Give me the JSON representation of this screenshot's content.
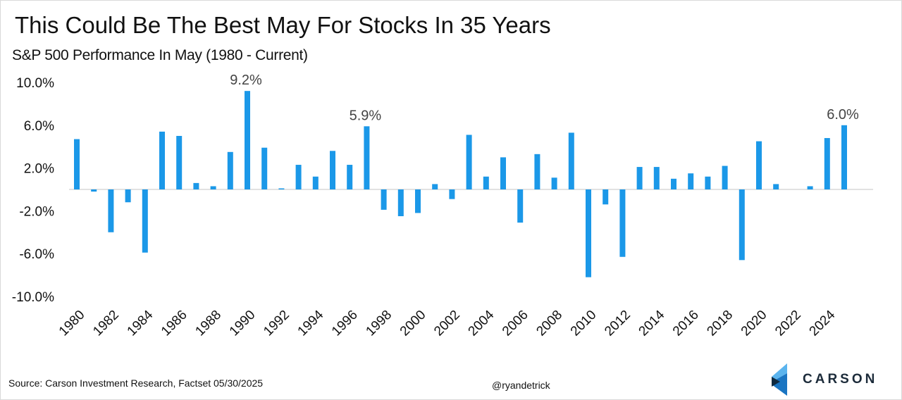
{
  "title": "This Could Be The Best May For Stocks In 35 Years",
  "subtitle": "S&P 500 Performance In May (1980 - Current)",
  "source": "Source: Carson Investment  Research, Factset 05/30/2025",
  "handle": "@ryandetrick",
  "logo": {
    "name": "CARSON",
    "colors": [
      "#4aa8e8",
      "#1a75c2",
      "#0f2a40"
    ]
  },
  "chart_data": {
    "type": "bar",
    "title": "This Could Be The Best May For Stocks In 35 Years",
    "subtitle": "S&P 500 Performance In May (1980 - Current)",
    "xlabel": "",
    "ylabel": "",
    "ylim": [
      -10,
      10
    ],
    "yticks": [
      10,
      6,
      2,
      -2,
      -6,
      -10
    ],
    "ytick_labels": [
      "10.0%",
      "6.0%",
      "2.0%",
      "-2.0%",
      "-6.0%",
      "-10.0%"
    ],
    "grid": false,
    "bar_color": "#1b98e8",
    "categories": [
      1980,
      1981,
      1982,
      1983,
      1984,
      1985,
      1986,
      1987,
      1988,
      1989,
      1990,
      1991,
      1992,
      1993,
      1994,
      1995,
      1996,
      1997,
      1998,
      1999,
      2000,
      2001,
      2002,
      2003,
      2004,
      2005,
      2006,
      2007,
      2008,
      2009,
      2010,
      2011,
      2012,
      2013,
      2014,
      2015,
      2016,
      2017,
      2018,
      2019,
      2020,
      2021,
      2022,
      2023,
      2024,
      2025
    ],
    "xtick_labels": [
      "1980",
      "1982",
      "1984",
      "1986",
      "1988",
      "1990",
      "1992",
      "1994",
      "1996",
      "1998",
      "2000",
      "2002",
      "2004",
      "2006",
      "2008",
      "2010",
      "2012",
      "2014",
      "2016",
      "2018",
      "2020",
      "2022",
      "2024"
    ],
    "values": [
      4.7,
      -0.2,
      -4.0,
      -1.2,
      -5.9,
      5.4,
      5.0,
      0.6,
      0.3,
      3.5,
      9.2,
      3.9,
      0.1,
      2.3,
      1.2,
      3.6,
      2.3,
      5.9,
      -1.9,
      -2.5,
      -2.2,
      0.5,
      -0.9,
      5.1,
      1.2,
      3.0,
      -3.1,
      3.3,
      1.1,
      5.3,
      -8.2,
      -1.4,
      -6.3,
      2.1,
      2.1,
      1.0,
      1.5,
      1.2,
      2.2,
      -6.6,
      4.5,
      0.5,
      0.0,
      0.3,
      4.8,
      6.0
    ],
    "annotations": [
      {
        "year": 1990,
        "text": "9.2%"
      },
      {
        "year": 1997,
        "text": "5.9%"
      },
      {
        "year": 2025,
        "text": "6.0%"
      }
    ]
  }
}
